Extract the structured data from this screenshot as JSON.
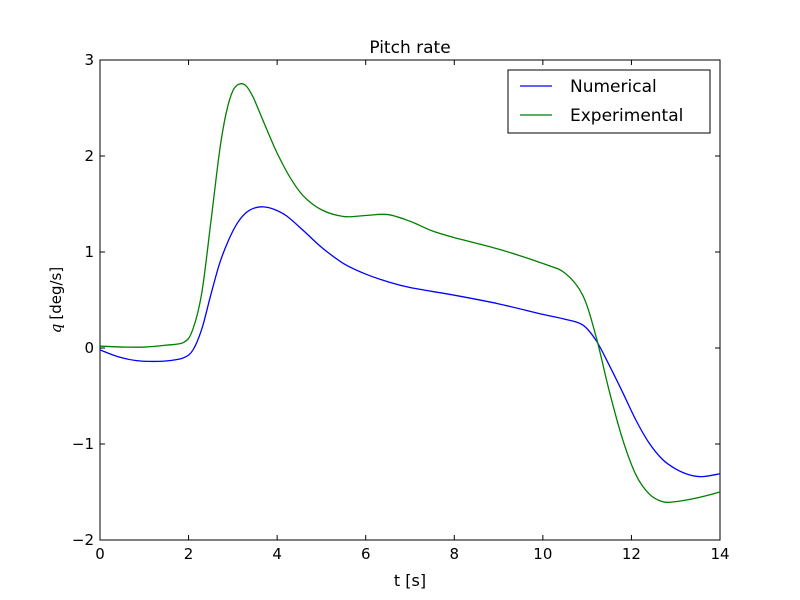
{
  "chart_data": {
    "type": "line",
    "title": "Pitch rate",
    "xlabel": "t [s]",
    "ylabel_symbol": "q",
    "ylabel_unit": "[deg/s]",
    "xlim": [
      0,
      14
    ],
    "ylim": [
      -2,
      3
    ],
    "xticks": [
      0,
      2,
      4,
      6,
      8,
      10,
      12,
      14
    ],
    "yticks": [
      -2,
      -1,
      0,
      1,
      2,
      3
    ],
    "xtick_labels": [
      "0",
      "2",
      "4",
      "6",
      "8",
      "10",
      "12",
      "14"
    ],
    "ytick_labels": [
      "−2",
      "−1",
      "0",
      "1",
      "2",
      "3"
    ],
    "grid": false,
    "legend_position": "top-right",
    "series": [
      {
        "name": "Numerical",
        "color": "#0000ff",
        "x": [
          0,
          0.4,
          0.8,
          1.2,
          1.6,
          1.9,
          2.1,
          2.3,
          2.5,
          2.7,
          2.9,
          3.1,
          3.3,
          3.5,
          3.7,
          3.9,
          4.2,
          4.6,
          5.0,
          5.5,
          6.0,
          6.5,
          7.0,
          8.0,
          9.0,
          10.0,
          10.5,
          10.9,
          11.2,
          11.5,
          11.8,
          12.1,
          12.4,
          12.7,
          13.0,
          13.3,
          13.6,
          14.0
        ],
        "y": [
          -0.02,
          -0.09,
          -0.13,
          -0.14,
          -0.13,
          -0.1,
          -0.02,
          0.2,
          0.55,
          0.88,
          1.12,
          1.3,
          1.41,
          1.46,
          1.47,
          1.45,
          1.38,
          1.22,
          1.05,
          0.88,
          0.77,
          0.69,
          0.63,
          0.55,
          0.46,
          0.35,
          0.3,
          0.24,
          0.08,
          -0.18,
          -0.46,
          -0.75,
          -0.99,
          -1.16,
          -1.26,
          -1.32,
          -1.34,
          -1.31
        ]
      },
      {
        "name": "Experimental",
        "color": "#007f00",
        "x": [
          0,
          0.5,
          1.0,
          1.5,
          1.9,
          2.1,
          2.3,
          2.5,
          2.7,
          2.85,
          3.0,
          3.15,
          3.3,
          3.45,
          3.6,
          3.8,
          4.0,
          4.3,
          4.6,
          5.0,
          5.5,
          6.0,
          6.5,
          7.0,
          7.5,
          8.0,
          9.0,
          10.0,
          10.5,
          10.9,
          11.2,
          11.5,
          11.8,
          12.1,
          12.4,
          12.7,
          13.0,
          13.5,
          14.0
        ],
        "y": [
          0.02,
          0.01,
          0.01,
          0.03,
          0.06,
          0.2,
          0.58,
          1.3,
          2.05,
          2.45,
          2.68,
          2.75,
          2.73,
          2.62,
          2.46,
          2.24,
          2.03,
          1.77,
          1.58,
          1.44,
          1.37,
          1.38,
          1.39,
          1.32,
          1.22,
          1.15,
          1.03,
          0.88,
          0.78,
          0.55,
          0.12,
          -0.45,
          -0.95,
          -1.32,
          -1.52,
          -1.6,
          -1.6,
          -1.56,
          -1.5
        ]
      }
    ]
  }
}
